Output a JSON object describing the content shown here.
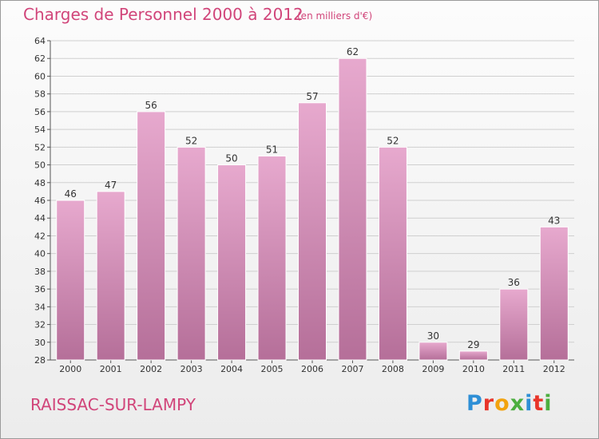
{
  "chart": {
    "title": "Charges de Personnel 2000 à 2012",
    "subtitle": "(en milliers d'€)",
    "commune": "RAISSAC-SUR-LAMPY",
    "brand": "Proxiti"
  },
  "colors": {
    "accent": "#d1457a",
    "bar_top": "#e7a9ce",
    "bar_bottom": "#b56f99",
    "grid": "#cfcfcf"
  },
  "chart_data": {
    "type": "bar",
    "title": "Charges de Personnel 2000 à 2012",
    "subtitle": "(en milliers d'€)",
    "xlabel": "",
    "ylabel": "",
    "categories": [
      "2000",
      "2001",
      "2002",
      "2003",
      "2004",
      "2005",
      "2006",
      "2007",
      "2008",
      "2009",
      "2010",
      "2011",
      "2012"
    ],
    "values": [
      46,
      47,
      56,
      52,
      50,
      51,
      57,
      62,
      52,
      30,
      29,
      36,
      43
    ],
    "ylim": [
      28,
      64
    ],
    "yticks": [
      28,
      30,
      32,
      34,
      36,
      38,
      40,
      42,
      44,
      46,
      48,
      50,
      52,
      54,
      56,
      58,
      60,
      62,
      64
    ],
    "grid": true,
    "legend": "none"
  }
}
